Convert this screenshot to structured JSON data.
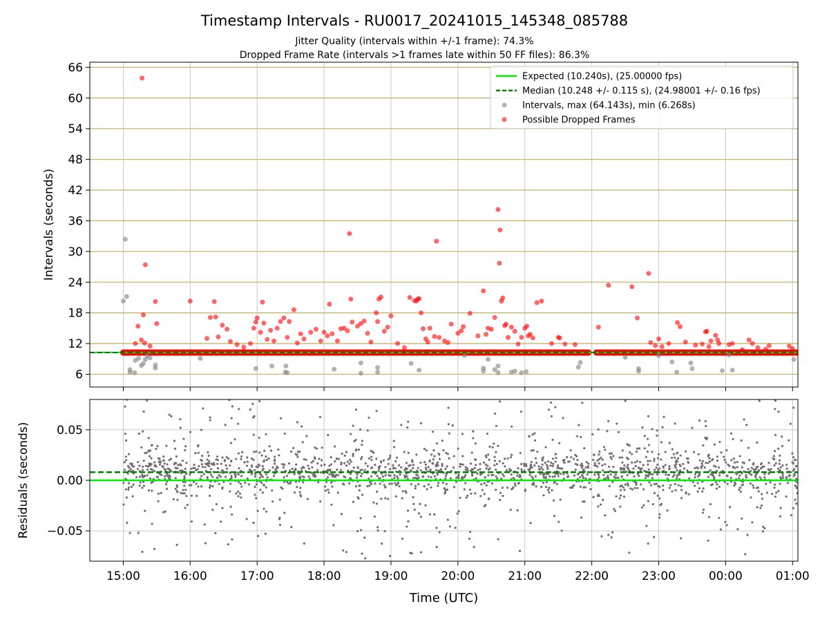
{
  "figure": {
    "title": "Timestamp Intervals - RU0017_20241015_145348_085788",
    "subtitle_1": "Jitter Quality (intervals within +/-1 frame): 74.3%",
    "subtitle_2": "Dropped Frame Rate (intervals >1 frames late within 50 FF files): 86.3%"
  },
  "colors": {
    "expected": "#00ee00",
    "median": "#008000",
    "intervals": "#808080",
    "dropped": "#ff0000",
    "hgrid": "#c8b46e",
    "vgrid": "#c8c8c8"
  },
  "chart_data": [
    {
      "type": "scatter",
      "name": "intervals",
      "xlabel": "",
      "ylabel": "Intervals (seconds)",
      "x_unit": "hours since 00:00 UTC (values > 24 are the next day)",
      "xlim": [
        14.5,
        25.08
      ],
      "ylim": [
        3.5,
        67
      ],
      "yticks": [
        6,
        12,
        18,
        24,
        30,
        36,
        42,
        48,
        54,
        60,
        66
      ],
      "hgrid": true,
      "vgrid": true,
      "legend_position": "top-right",
      "legend": [
        "Expected (10.240s), (25.00000 fps)",
        "Median (10.248 +/- 0.115 s), (24.98001 +/- 0.16 fps)",
        "Intervals, max (64.143s), min (6.268s)",
        "Possible Dropped Frames"
      ],
      "expected_value": 10.24,
      "median_value": 10.248,
      "band": {
        "from": 15.0,
        "to": 25.08,
        "y": 10.24,
        "gap": [
          21.95,
          22.07
        ]
      },
      "series": [
        {
          "name": "Intervals, max (64.143s), min (6.268s)",
          "points": [
            [
              15.0,
              20.3
            ],
            [
              15.03,
              32.4
            ],
            [
              15.05,
              21.2
            ],
            [
              15.1,
              6.4
            ],
            [
              15.1,
              6.9
            ],
            [
              15.17,
              6.3
            ],
            [
              15.18,
              8.7
            ],
            [
              15.23,
              9.1
            ],
            [
              15.27,
              7.7
            ],
            [
              15.3,
              8.1
            ],
            [
              15.33,
              8.9
            ],
            [
              15.36,
              9.6
            ],
            [
              15.4,
              9.2
            ],
            [
              15.48,
              7.2
            ],
            [
              15.48,
              7.8
            ],
            [
              16.15,
              9.1
            ],
            [
              16.98,
              7.1
            ],
            [
              17.22,
              7.6
            ],
            [
              17.42,
              6.4
            ],
            [
              17.43,
              7.6
            ],
            [
              17.45,
              6.3
            ],
            [
              18.15,
              7.0
            ],
            [
              18.55,
              6.2
            ],
            [
              18.55,
              8.2
            ],
            [
              18.8,
              6.4
            ],
            [
              18.8,
              7.3
            ],
            [
              19.3,
              8.1
            ],
            [
              19.42,
              6.8
            ],
            [
              20.1,
              9.7
            ],
            [
              20.38,
              6.6
            ],
            [
              20.38,
              7.2
            ],
            [
              20.45,
              8.9
            ],
            [
              20.55,
              6.9
            ],
            [
              20.6,
              6.3
            ],
            [
              20.6,
              7.6
            ],
            [
              20.8,
              6.4
            ],
            [
              20.85,
              6.6
            ],
            [
              20.95,
              6.3
            ],
            [
              21.02,
              6.5
            ],
            [
              21.8,
              7.4
            ],
            [
              21.83,
              8.3
            ],
            [
              22.5,
              9.3
            ],
            [
              22.7,
              6.6
            ],
            [
              22.7,
              7.1
            ],
            [
              23.0,
              9.7
            ],
            [
              23.2,
              8.4
            ],
            [
              23.27,
              6.4
            ],
            [
              23.48,
              8.2
            ],
            [
              23.5,
              7.1
            ],
            [
              23.95,
              6.7
            ],
            [
              24.1,
              6.8
            ],
            [
              24.05,
              9.8
            ],
            [
              25.02,
              8.9
            ]
          ]
        },
        {
          "name": "Possible Dropped Frames",
          "points": [
            [
              15.28,
              63.9
            ],
            [
              15.33,
              27.4
            ],
            [
              15.48,
              20.2
            ],
            [
              15.22,
              15.4
            ],
            [
              15.3,
              17.6
            ],
            [
              15.5,
              15.9
            ],
            [
              15.27,
              12.7
            ],
            [
              15.32,
              12.1
            ],
            [
              15.18,
              12.0
            ],
            [
              15.4,
              11.5
            ],
            [
              16.0,
              20.3
            ],
            [
              16.36,
              20.2
            ],
            [
              16.3,
              17.1
            ],
            [
              16.38,
              17.2
            ],
            [
              16.48,
              15.6
            ],
            [
              16.55,
              14.8
            ],
            [
              16.25,
              13.0
            ],
            [
              16.42,
              13.3
            ],
            [
              16.6,
              12.4
            ],
            [
              16.7,
              11.8
            ],
            [
              16.8,
              11.3
            ],
            [
              16.9,
              12.0
            ],
            [
              16.95,
              15.0
            ],
            [
              16.98,
              16.2
            ],
            [
              17.0,
              17.0
            ],
            [
              17.05,
              14.2
            ],
            [
              17.08,
              20.1
            ],
            [
              17.1,
              16.0
            ],
            [
              17.15,
              12.8
            ],
            [
              17.2,
              14.6
            ],
            [
              17.25,
              12.5
            ],
            [
              17.3,
              15.0
            ],
            [
              17.35,
              16.3
            ],
            [
              17.4,
              17.0
            ],
            [
              17.45,
              13.2
            ],
            [
              17.48,
              16.3
            ],
            [
              17.55,
              18.6
            ],
            [
              17.6,
              12.1
            ],
            [
              17.65,
              13.9
            ],
            [
              17.7,
              12.9
            ],
            [
              17.8,
              14.2
            ],
            [
              17.88,
              14.8
            ],
            [
              17.95,
              12.5
            ],
            [
              18.0,
              14.2
            ],
            [
              18.05,
              13.5
            ],
            [
              18.08,
              19.7
            ],
            [
              18.12,
              13.9
            ],
            [
              18.2,
              12.5
            ],
            [
              18.25,
              14.9
            ],
            [
              18.3,
              15.0
            ],
            [
              18.35,
              14.5
            ],
            [
              18.38,
              33.5
            ],
            [
              18.4,
              20.7
            ],
            [
              18.42,
              16.2
            ],
            [
              18.5,
              15.4
            ],
            [
              18.55,
              15.9
            ],
            [
              18.6,
              16.4
            ],
            [
              18.65,
              14.0
            ],
            [
              18.7,
              12.3
            ],
            [
              18.78,
              18.0
            ],
            [
              18.8,
              16.3
            ],
            [
              18.82,
              20.7
            ],
            [
              18.85,
              21.1
            ],
            [
              18.9,
              14.4
            ],
            [
              18.95,
              15.2
            ],
            [
              19.0,
              17.4
            ],
            [
              19.1,
              12.0
            ],
            [
              19.2,
              11.2
            ],
            [
              19.28,
              21.0
            ],
            [
              19.35,
              20.4
            ],
            [
              19.38,
              20.3
            ],
            [
              19.4,
              20.7
            ],
            [
              19.42,
              20.8
            ],
            [
              19.45,
              18.0
            ],
            [
              19.48,
              14.9
            ],
            [
              19.52,
              12.9
            ],
            [
              19.55,
              12.3
            ],
            [
              19.58,
              15.0
            ],
            [
              19.65,
              13.4
            ],
            [
              19.68,
              32.0
            ],
            [
              19.72,
              13.2
            ],
            [
              19.8,
              12.5
            ],
            [
              19.85,
              12.2
            ],
            [
              19.9,
              15.8
            ],
            [
              20.0,
              14.0
            ],
            [
              20.05,
              14.5
            ],
            [
              20.08,
              15.3
            ],
            [
              20.18,
              17.9
            ],
            [
              20.3,
              13.5
            ],
            [
              20.38,
              22.3
            ],
            [
              20.42,
              13.8
            ],
            [
              20.45,
              15.0
            ],
            [
              20.5,
              14.8
            ],
            [
              20.55,
              17.1
            ],
            [
              20.6,
              38.2
            ],
            [
              20.62,
              27.7
            ],
            [
              20.63,
              34.2
            ],
            [
              20.65,
              20.3
            ],
            [
              20.67,
              20.9
            ],
            [
              20.7,
              15.5
            ],
            [
              20.72,
              15.8
            ],
            [
              20.75,
              13.2
            ],
            [
              20.8,
              15.2
            ],
            [
              20.85,
              14.4
            ],
            [
              20.9,
              11.9
            ],
            [
              20.95,
              13.2
            ],
            [
              21.0,
              15.0
            ],
            [
              21.03,
              15.4
            ],
            [
              21.05,
              13.5
            ],
            [
              21.08,
              13.8
            ],
            [
              21.12,
              13.1
            ],
            [
              21.18,
              20.0
            ],
            [
              21.25,
              20.3
            ],
            [
              21.4,
              12.0
            ],
            [
              21.5,
              13.2
            ],
            [
              21.52,
              13.1
            ],
            [
              21.6,
              11.9
            ],
            [
              21.75,
              11.8
            ],
            [
              22.1,
              15.2
            ],
            [
              22.25,
              23.4
            ],
            [
              22.6,
              23.1
            ],
            [
              22.68,
              17.0
            ],
            [
              22.85,
              25.7
            ],
            [
              22.88,
              12.2
            ],
            [
              22.95,
              11.6
            ],
            [
              23.0,
              12.9
            ],
            [
              23.05,
              11.4
            ],
            [
              23.15,
              12.0
            ],
            [
              23.28,
              16.1
            ],
            [
              23.32,
              15.3
            ],
            [
              23.4,
              12.3
            ],
            [
              23.55,
              11.7
            ],
            [
              23.65,
              11.9
            ],
            [
              23.7,
              14.3
            ],
            [
              23.72,
              14.4
            ],
            [
              23.75,
              11.4
            ],
            [
              23.78,
              12.5
            ],
            [
              23.85,
              13.6
            ],
            [
              23.88,
              12.7
            ],
            [
              23.9,
              12.0
            ],
            [
              24.05,
              11.8
            ],
            [
              24.1,
              12.0
            ],
            [
              24.25,
              10.8
            ],
            [
              24.35,
              12.7
            ],
            [
              24.4,
              12.0
            ],
            [
              24.48,
              11.2
            ],
            [
              24.6,
              10.9
            ],
            [
              24.65,
              11.6
            ],
            [
              24.95,
              11.5
            ],
            [
              25.0,
              11.0
            ]
          ]
        }
      ]
    },
    {
      "type": "scatter",
      "name": "residuals",
      "xlabel": "Time (UTC)",
      "ylabel": "Residuals (seconds)",
      "x_unit": "hours since 00:00 UTC (values > 24 are the next day)",
      "xlim": [
        14.5,
        25.08
      ],
      "ylim": [
        -0.08,
        0.08
      ],
      "yticks": [
        -0.05,
        0.0,
        0.05
      ],
      "ytick_labels": [
        "−0.05",
        "0.00",
        "0.05"
      ],
      "xticks": [
        15,
        16,
        17,
        18,
        19,
        20,
        21,
        22,
        23,
        24,
        25
      ],
      "xtick_labels": [
        "15:00",
        "16:00",
        "17:00",
        "18:00",
        "19:00",
        "20:00",
        "21:00",
        "22:00",
        "23:00",
        "00:00",
        "01:00"
      ],
      "expected_value": 0.0,
      "median_value": 0.008,
      "series": [
        {
          "name": "residuals",
          "generated": {
            "count": 1900,
            "x_from": 15.0,
            "x_to": 25.08,
            "core_sd": 0.01,
            "tail_sd": 0.04,
            "tail_fraction": 0.35,
            "seed": 17
          }
        }
      ]
    }
  ]
}
